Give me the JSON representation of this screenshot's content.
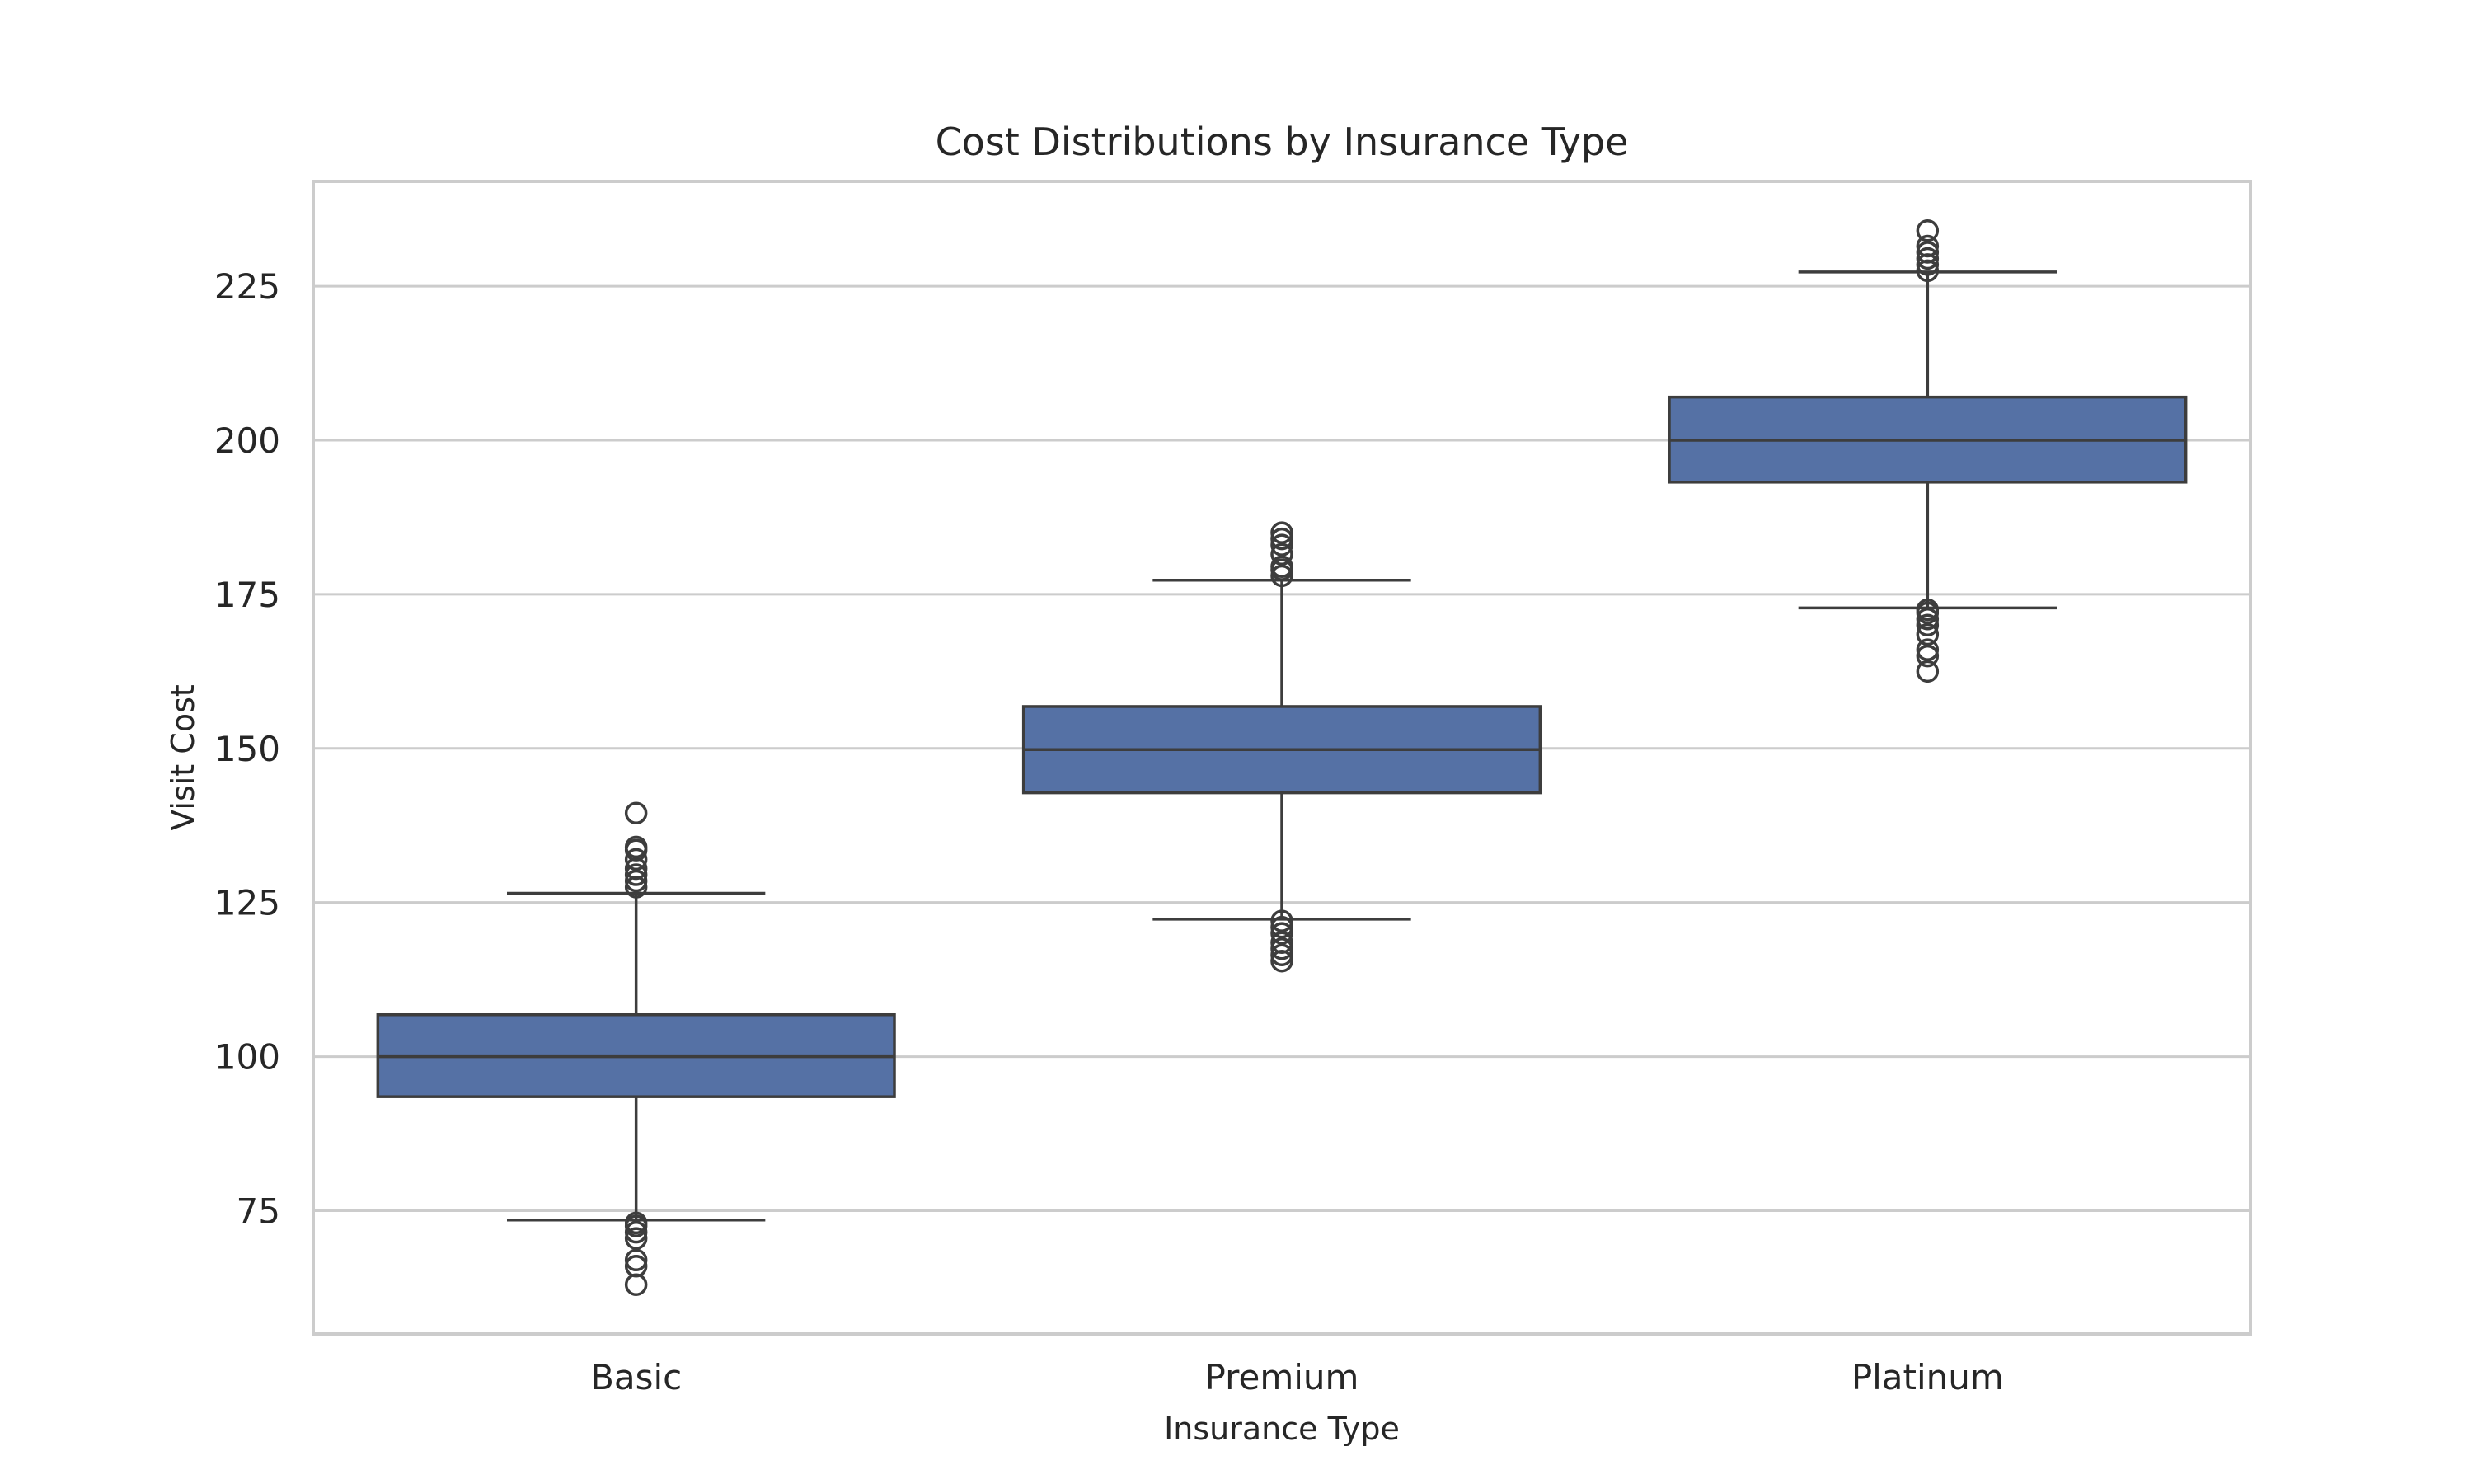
{
  "chart_data": {
    "type": "box",
    "title": "Cost Distributions by Insurance Type",
    "xlabel": "Insurance Type",
    "ylabel": "Visit Cost",
    "ylim": [
      55,
      242
    ],
    "yticks": [
      75,
      100,
      125,
      150,
      175,
      200,
      225
    ],
    "grid": "horizontal",
    "box_color": "#5571a5",
    "line_color": "#3d3d3d",
    "grid_color": "#cccccc",
    "categories": [
      "Basic",
      "Premium",
      "Platinum"
    ],
    "series": [
      {
        "category": "Basic",
        "whisker_low": 73.5,
        "q1": 93.5,
        "median": 100,
        "q3": 106.8,
        "whisker_high": 126.5,
        "outliers": [
          63,
          66,
          67,
          70.5,
          71.5,
          72.5,
          73,
          127.5,
          128.5,
          129.5,
          130.5,
          132,
          133.5,
          134,
          139.5
        ]
      },
      {
        "category": "Premium",
        "whisker_low": 122.3,
        "q1": 142.8,
        "median": 149.8,
        "q3": 156.8,
        "whisker_high": 177.3,
        "outliers": [
          115.5,
          116.5,
          117.5,
          118.5,
          120,
          121,
          122,
          178,
          179,
          179.5,
          181.5,
          183,
          184,
          185
        ]
      },
      {
        "category": "Platinum",
        "whisker_low": 172.8,
        "q1": 193.2,
        "median": 200,
        "q3": 207,
        "whisker_high": 227.3,
        "outliers": [
          162.5,
          165,
          166,
          168.5,
          170,
          171,
          172,
          172.5,
          227.5,
          228.5,
          229.5,
          230.5,
          231.5,
          234
        ]
      }
    ]
  }
}
